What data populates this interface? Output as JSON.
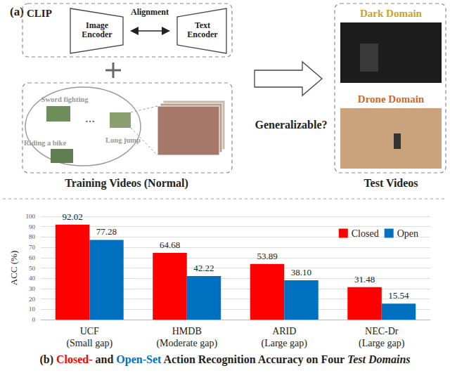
{
  "diagram": {
    "panel_label": "(a)",
    "clip_box": {
      "title": "CLIP",
      "image_encoder": "Image Encoder",
      "alignment": "Alignment",
      "text_encoder": "Text Encoder"
    },
    "training": {
      "actions": [
        "Sword fighting",
        "Riding a bike",
        "Long jump"
      ],
      "ellipsis": "…",
      "label": "Training Videos (Normal)"
    },
    "question": "Generalizable?",
    "test": {
      "domains": [
        {
          "name": "Dark Domain",
          "color": "#c9a227"
        },
        {
          "name": "Drone Domain",
          "color": "#d2691e"
        }
      ],
      "label": "Test Videos"
    }
  },
  "chart_data": {
    "type": "bar",
    "categories": [
      "UCF\n(Small gap)",
      "HMDB\n(Moderate gap)",
      "ARID\n(Large gap)",
      "NEC-Dr\n(Large gap)"
    ],
    "series": [
      {
        "name": "Closed",
        "color": "#ff0000",
        "values": [
          92.02,
          64.68,
          53.89,
          31.48
        ],
        "value_labels": [
          "92.02",
          "64.68",
          "53.89",
          "31.48"
        ]
      },
      {
        "name": "Open",
        "color": "#0070c0",
        "values": [
          77.28,
          42.22,
          38.1,
          15.54
        ],
        "value_labels": [
          "77.28",
          "42.22",
          "38.10",
          "15.54"
        ]
      }
    ],
    "y_label": "ACC (%)",
    "ylim": [
      0,
      100
    ],
    "yticks": [
      0,
      10,
      20,
      30,
      40,
      50,
      60,
      70,
      80,
      90,
      100
    ],
    "grid": true,
    "legend": "upper right",
    "data_labels": true,
    "caption": [
      {
        "text": "(b)"
      },
      {
        "text": "Closed-",
        "color": "#ff0000"
      },
      {
        "text": "and"
      },
      {
        "text": "Open-Set",
        "color": "#0070c0"
      },
      {
        "text": "Action Recognition Accuracy on Four"
      },
      {
        "text": "Test Domains",
        "style": "italic"
      }
    ]
  }
}
